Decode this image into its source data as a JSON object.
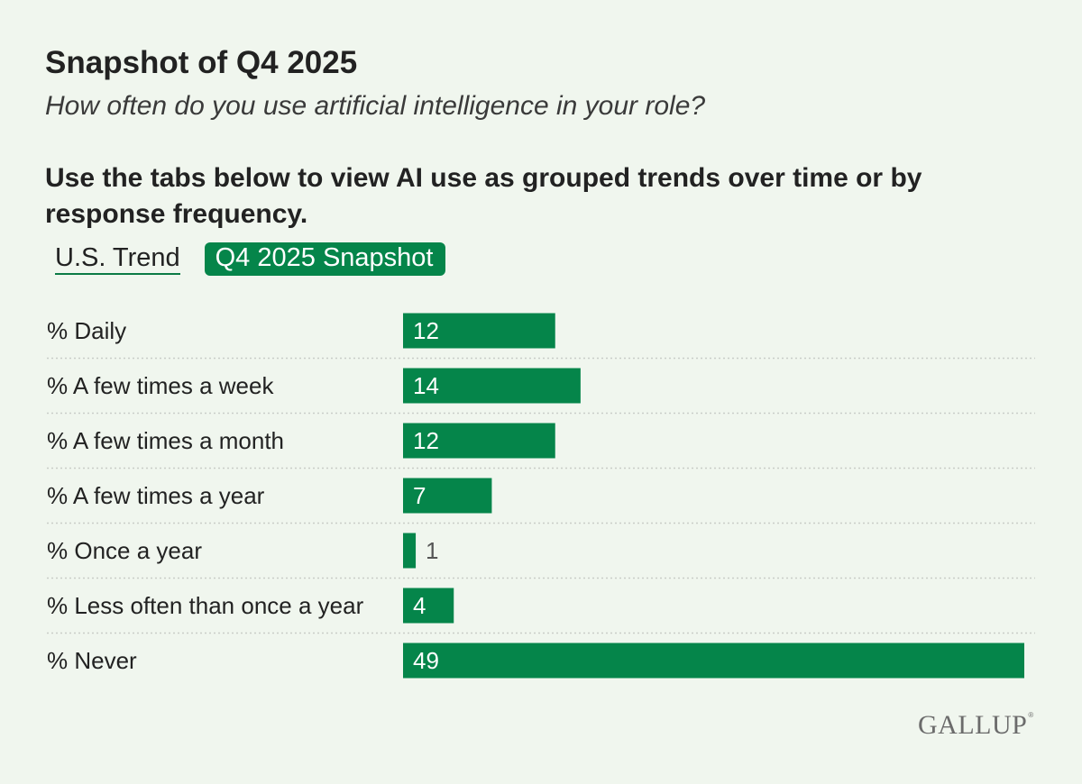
{
  "header": {
    "title": "Snapshot of Q4 2025",
    "subtitle": "How often do you use artificial intelligence in your role?",
    "instructions": "Use the tabs below to view AI use as grouped trends over time or by response frequency."
  },
  "tabs": {
    "trend_label": "U.S. Trend",
    "snapshot_label": "Q4 2025 Snapshot",
    "active": "Q4 2025 Snapshot"
  },
  "colors": {
    "bar": "#05854a",
    "background": "#f0f6ee",
    "label_inside": "#ffffff",
    "label_outside": "#555555",
    "gridline": "#c9cdc8"
  },
  "chart_data": {
    "type": "bar",
    "orientation": "horizontal",
    "title": "Snapshot of Q4 2025",
    "categories": [
      "% Daily",
      "% A few times a week",
      "% A few times a month",
      "% A few times a year",
      "% Once a year",
      "% Less often than once a year",
      "% Never"
    ],
    "values": [
      12,
      14,
      12,
      7,
      1,
      4,
      49
    ],
    "xlim": [
      0,
      49
    ],
    "xlabel": "",
    "ylabel": "",
    "grid": false,
    "data_labels": true
  },
  "footer": {
    "logo_text": "GALLUP",
    "logo_mark": "®"
  }
}
